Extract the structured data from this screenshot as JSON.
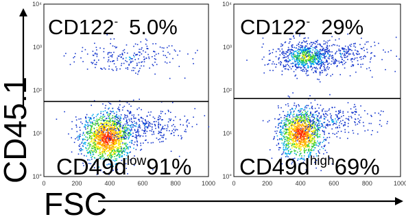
{
  "figure": {
    "ylabel": "CD45.1",
    "xlabel": "FSC"
  },
  "chart_data": [
    {
      "type": "scatter",
      "xlim": [
        0,
        1000
      ],
      "ylim": [
        1,
        10000
      ],
      "yscale": "log",
      "xticks": [
        "0",
        "200",
        "400",
        "600",
        "800",
        "1000"
      ],
      "yticks": [
        "10°",
        "10¹",
        "10²",
        "10³",
        "10⁴"
      ],
      "gate_line_y": 55,
      "upper_gate_label": {
        "main": "CD122",
        "sup": "-",
        "value": "5.0%"
      },
      "lower_gate_label": {
        "main": "CD49d",
        "sup": "low",
        "value": "91%"
      },
      "populations": [
        {
          "x_center": 380,
          "x_sd": 75,
          "y_center": 8,
          "y_sd_decades": 0.3,
          "n": 1300,
          "density": "high"
        },
        {
          "x_center": 560,
          "x_sd": 160,
          "y_center": 15,
          "y_sd_decades": 0.22,
          "n": 400,
          "density": "low"
        },
        {
          "x_center": 520,
          "x_sd": 180,
          "y_center": 600,
          "y_sd_decades": 0.2,
          "n": 220,
          "density": "low"
        }
      ]
    },
    {
      "type": "scatter",
      "xlim": [
        0,
        1000
      ],
      "ylim": [
        1,
        10000
      ],
      "yscale": "log",
      "xticks": [
        "0",
        "200",
        "400",
        "600",
        "800",
        "1000"
      ],
      "yticks": [
        "10°",
        "10¹",
        "10²",
        "10³",
        "10⁴"
      ],
      "gate_line_y": 65,
      "upper_gate_label": {
        "main": "CD122",
        "sup": "-",
        "value": "29%"
      },
      "lower_gate_label": {
        "main": "CD49d",
        "sup": "high",
        "value": "69%"
      },
      "populations": [
        {
          "x_center": 400,
          "x_sd": 65,
          "y_center": 10,
          "y_sd_decades": 0.28,
          "n": 1100,
          "density": "high"
        },
        {
          "x_center": 560,
          "x_sd": 150,
          "y_center": 20,
          "y_sd_decades": 0.2,
          "n": 300,
          "density": "low"
        },
        {
          "x_center": 430,
          "x_sd": 90,
          "y_center": 600,
          "y_sd_decades": 0.18,
          "n": 700,
          "density": "medium"
        },
        {
          "x_center": 620,
          "x_sd": 150,
          "y_center": 700,
          "y_sd_decades": 0.2,
          "n": 250,
          "density": "low"
        }
      ]
    }
  ]
}
